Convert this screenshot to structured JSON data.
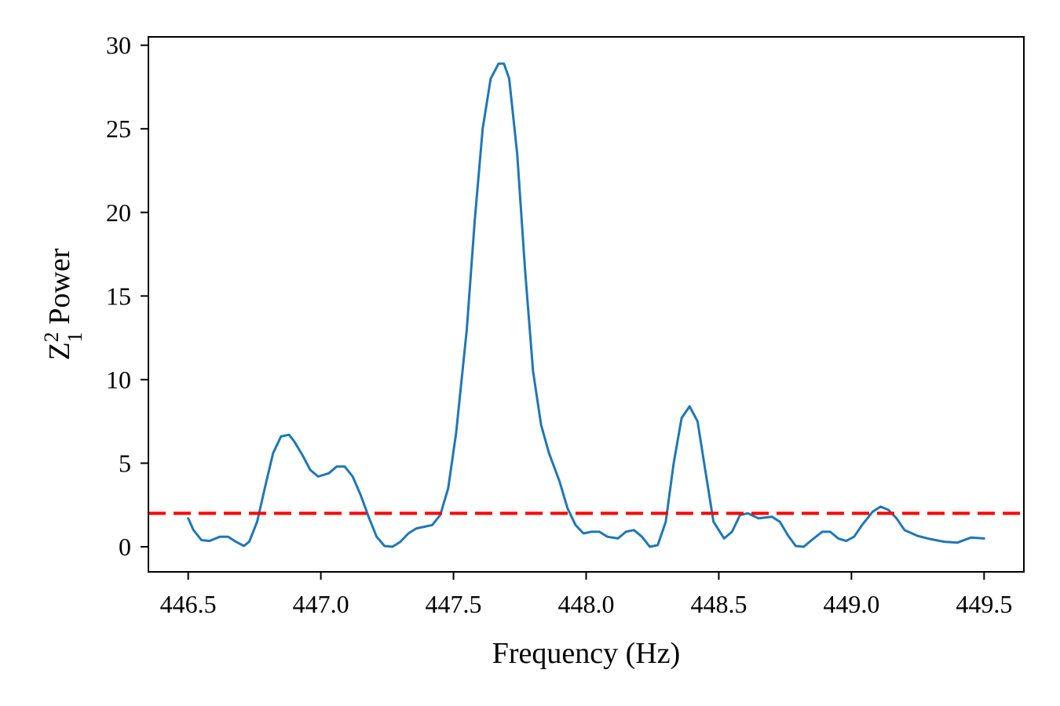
{
  "chart_data": {
    "type": "line",
    "title": "",
    "xlabel": "Frequency (Hz)",
    "ylabel": {
      "base": "Z",
      "superscript": "2",
      "subscript": "1",
      "rest": " Power"
    },
    "xlim": [
      446.35,
      449.65
    ],
    "ylim": [
      -1.5,
      30.5
    ],
    "xticks": [
      446.5,
      447.0,
      447.5,
      448.0,
      448.5,
      449.0,
      449.5
    ],
    "xtick_labels": [
      "446.5",
      "447.0",
      "447.5",
      "448.0",
      "448.5",
      "449.0",
      "449.5"
    ],
    "yticks": [
      0,
      5,
      10,
      15,
      20,
      25,
      30
    ],
    "ytick_labels": [
      "0",
      "5",
      "10",
      "15",
      "20",
      "25",
      "30"
    ],
    "grid": false,
    "series": [
      {
        "color": "#1f77b4",
        "style": "solid",
        "x": [
          446.5,
          446.52,
          446.55,
          446.58,
          446.62,
          446.65,
          446.68,
          446.71,
          446.73,
          446.76,
          446.79,
          446.82,
          446.85,
          446.88,
          446.9,
          446.93,
          446.96,
          446.99,
          447.03,
          447.06,
          447.09,
          447.12,
          447.15,
          447.18,
          447.21,
          447.24,
          447.27,
          447.3,
          447.33,
          447.36,
          447.39,
          447.42,
          447.45,
          447.48,
          447.51,
          447.55,
          447.58,
          447.61,
          447.64,
          447.67,
          447.69,
          447.71,
          447.74,
          447.77,
          447.8,
          447.83,
          447.86,
          447.9,
          447.93,
          447.96,
          447.99,
          448.02,
          448.05,
          448.08,
          448.12,
          448.15,
          448.18,
          448.21,
          448.24,
          448.27,
          448.3,
          448.33,
          448.36,
          448.39,
          448.42,
          448.45,
          448.48,
          448.52,
          448.55,
          448.58,
          448.61,
          448.65,
          448.7,
          448.73,
          448.76,
          448.79,
          448.82,
          448.85,
          448.89,
          448.92,
          448.95,
          448.98,
          449.01,
          449.04,
          449.08,
          449.11,
          449.14,
          449.17,
          449.2,
          449.25,
          449.3,
          449.35,
          449.4,
          449.45,
          449.5
        ],
        "y": [
          1.7,
          1.0,
          0.4,
          0.35,
          0.6,
          0.6,
          0.3,
          0.05,
          0.3,
          1.5,
          3.6,
          5.6,
          6.6,
          6.7,
          6.3,
          5.5,
          4.6,
          4.2,
          4.4,
          4.8,
          4.8,
          4.2,
          3.1,
          1.8,
          0.6,
          0.05,
          0.0,
          0.3,
          0.8,
          1.1,
          1.2,
          1.3,
          1.9,
          3.5,
          6.8,
          13.0,
          19.5,
          25.0,
          28.0,
          28.9,
          28.9,
          28.0,
          23.5,
          16.5,
          10.5,
          7.3,
          5.6,
          3.9,
          2.3,
          1.3,
          0.8,
          0.9,
          0.9,
          0.6,
          0.5,
          0.9,
          1.0,
          0.6,
          0.0,
          0.1,
          1.5,
          5.0,
          7.7,
          8.4,
          7.5,
          4.5,
          1.5,
          0.5,
          0.9,
          1.9,
          2.0,
          1.7,
          1.8,
          1.5,
          0.7,
          0.05,
          0.0,
          0.4,
          0.9,
          0.9,
          0.5,
          0.35,
          0.6,
          1.3,
          2.1,
          2.4,
          2.2,
          1.7,
          1.0,
          0.65,
          0.45,
          0.3,
          0.25,
          0.55,
          0.5
        ]
      },
      {
        "color": "#ff0000",
        "style": "dashed",
        "type": "hline",
        "y": 2.0
      }
    ]
  }
}
